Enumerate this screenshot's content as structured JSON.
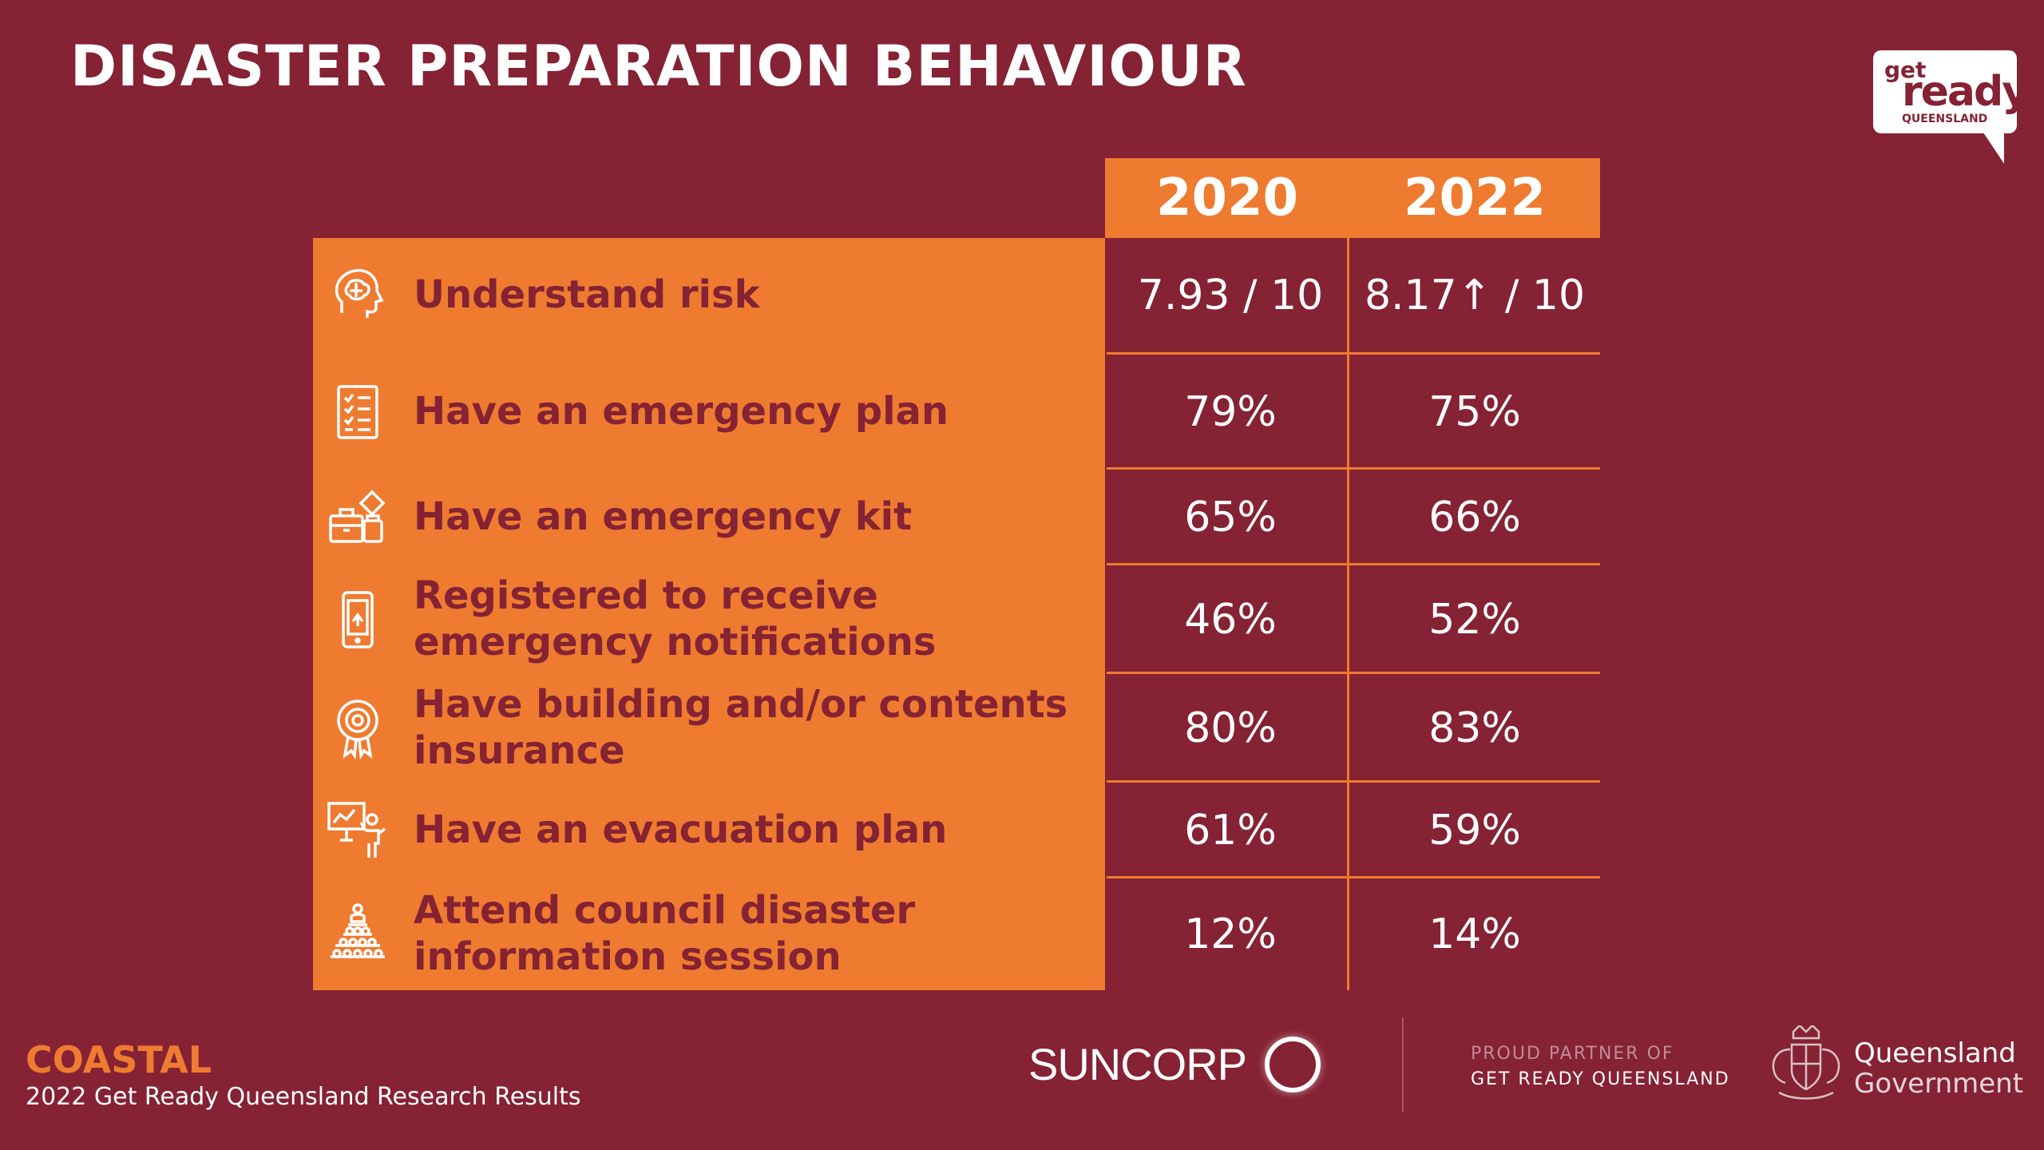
{
  "title": "DISASTER PREPARATION BEHAVIOUR",
  "logo": {
    "get": "get",
    "ready": "ready",
    "region": "QUEENSLAND"
  },
  "table": {
    "columns": [
      "2020",
      "2022"
    ],
    "rows": [
      {
        "label": "Understand risk",
        "icon": "brain-head-icon",
        "v2020": "7.93 / 10",
        "v2022": "8.17↑ / 10"
      },
      {
        "label": "Have an emergency plan",
        "icon": "checklist-icon",
        "v2020": "79%",
        "v2022": "75%"
      },
      {
        "label": "Have an emergency kit",
        "icon": "emergency-kit-icon",
        "v2020": "65%",
        "v2022": "66%"
      },
      {
        "label": "Registered to receive emergency notifications",
        "icon": "smartphone-icon",
        "v2020": "46%",
        "v2022": "52%"
      },
      {
        "label": "Have building and/or contents insurance",
        "icon": "award-badge-icon",
        "v2020": "80%",
        "v2022": "83%"
      },
      {
        "label": "Have an evacuation plan",
        "icon": "presenter-board-icon",
        "v2020": "61%",
        "v2022": "59%"
      },
      {
        "label": "Attend council disaster information session",
        "icon": "audience-speaker-icon",
        "v2020": "12%",
        "v2022": "14%"
      }
    ]
  },
  "footer": {
    "region": "COASTAL",
    "subtitle": "2022 Get Ready Queensland Research Results",
    "sponsor": "SUNCORP",
    "partner_line1": "PROUD PARTNER OF",
    "partner_line2": "GET READY QUEENSLAND",
    "gov_line1": "Queensland",
    "gov_line2": "Government"
  },
  "colors": {
    "background": "#852233",
    "accent": "#ee7b30",
    "text": "#ffffff"
  }
}
